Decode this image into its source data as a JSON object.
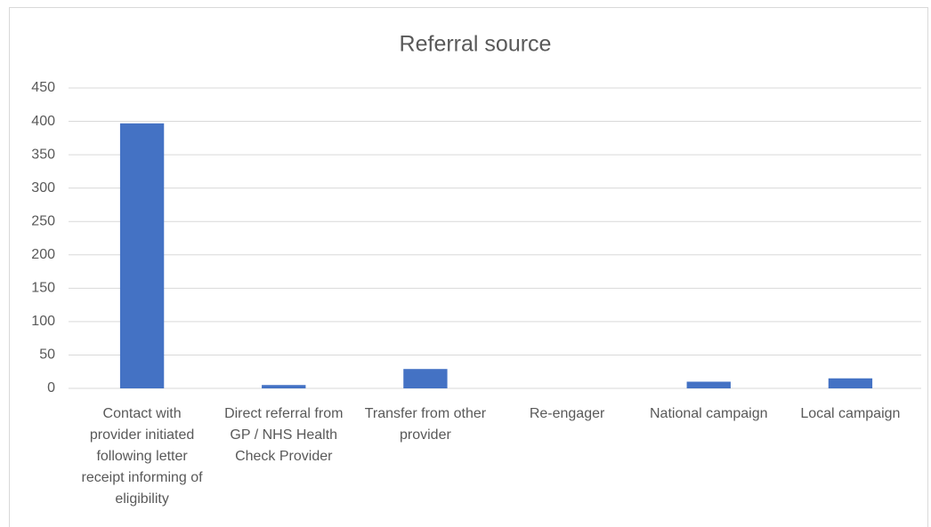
{
  "chart_data": {
    "type": "bar",
    "title": "Referral source",
    "categories": [
      "Contact with provider initiated following letter receipt informing of eligibility",
      "Direct referral from GP / NHS Health Check Provider",
      "Transfer from other provider",
      "Re-engager",
      "National campaign",
      "Local campaign"
    ],
    "values": [
      397,
      5,
      29,
      0,
      10,
      15
    ],
    "color": "#4472c4",
    "ylim": [
      0,
      450
    ],
    "yticks": [
      0,
      50,
      100,
      150,
      200,
      250,
      300,
      350,
      400,
      450
    ],
    "grid": true
  }
}
